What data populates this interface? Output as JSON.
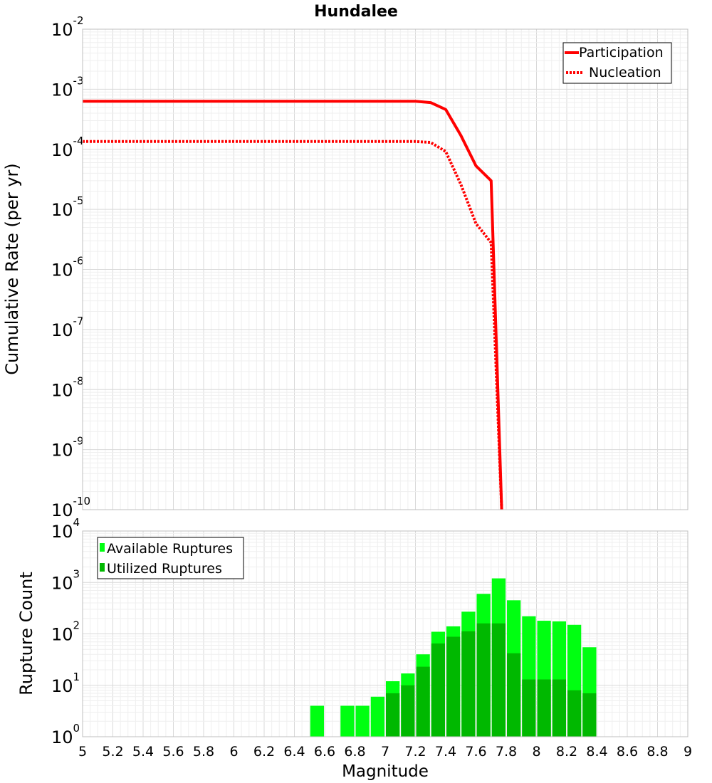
{
  "title": "Hundalee",
  "colors": {
    "participation": "#ff0000",
    "nucleation": "#ff0000",
    "available": "#00ff11",
    "utilized": "#00b800",
    "grid": "#e6e6e6",
    "frame": "#bfbfbf"
  },
  "chart_data": [
    {
      "type": "line",
      "title": "Hundalee",
      "xlabel": "",
      "ylabel": "Cumulative Rate (per yr)",
      "xlim": [
        5,
        9
      ],
      "ylim": [
        1e-10,
        0.01
      ],
      "yscale": "log",
      "legend_position": "top-right",
      "y_tick_bases": [
        "10",
        "10",
        "10",
        "10",
        "10",
        "10",
        "10",
        "10",
        "10"
      ],
      "y_tick_exponents": [
        "-2",
        "-3",
        "-4",
        "-5",
        "-6",
        "-7",
        "-8",
        "-9",
        "-10"
      ],
      "series": [
        {
          "name": "Participation",
          "style": "solid",
          "x": [
            5.0,
            7.2,
            7.3,
            7.4,
            7.5,
            7.6,
            7.7,
            7.77
          ],
          "values": [
            0.00063,
            0.00063,
            0.0006,
            0.00046,
            0.00017,
            5.3e-05,
            3e-05,
            1e-10
          ]
        },
        {
          "name": "Nucleation",
          "style": "dotted",
          "x": [
            5.0,
            7.2,
            7.3,
            7.4,
            7.5,
            7.6,
            7.7,
            7.77
          ],
          "values": [
            0.000135,
            0.000135,
            0.00013,
            9.2e-05,
            2.6e-05,
            5.8e-06,
            2.8e-06,
            1e-10
          ]
        }
      ]
    },
    {
      "type": "bar",
      "title": "",
      "xlabel": "Magnitude",
      "ylabel": "Rupture Count",
      "xlim": [
        5,
        9
      ],
      "ylim": [
        1,
        10000
      ],
      "yscale": "log",
      "legend_position": "top-left",
      "x_ticks": [
        "5",
        "5.2",
        "5.4",
        "5.6",
        "5.8",
        "6",
        "6.2",
        "6.4",
        "6.6",
        "6.8",
        "7",
        "7.2",
        "7.4",
        "7.6",
        "7.8",
        "8",
        "8.2",
        "8.4",
        "8.6",
        "8.8",
        "9"
      ],
      "y_tick_bases": [
        "10",
        "10",
        "10",
        "10",
        "10"
      ],
      "y_tick_exponents": [
        "4",
        "3",
        "2",
        "1",
        "0"
      ],
      "bin_width": 0.1,
      "categories": [
        6.55,
        6.75,
        6.85,
        6.95,
        7.05,
        7.15,
        7.25,
        7.35,
        7.45,
        7.55,
        7.65,
        7.75,
        7.85,
        7.95,
        8.05,
        8.15,
        8.25,
        8.35
      ],
      "series": [
        {
          "name": "Available Ruptures",
          "values": [
            4,
            4,
            4,
            6,
            12,
            17,
            40,
            110,
            140,
            270,
            600,
            1200,
            450,
            220,
            180,
            175,
            150,
            55
          ]
        },
        {
          "name": "Utilized Ruptures",
          "values": [
            0,
            0,
            0,
            0,
            7,
            10,
            23,
            65,
            88,
            112,
            160,
            160,
            42,
            13,
            13,
            13,
            8,
            7
          ]
        }
      ]
    }
  ]
}
